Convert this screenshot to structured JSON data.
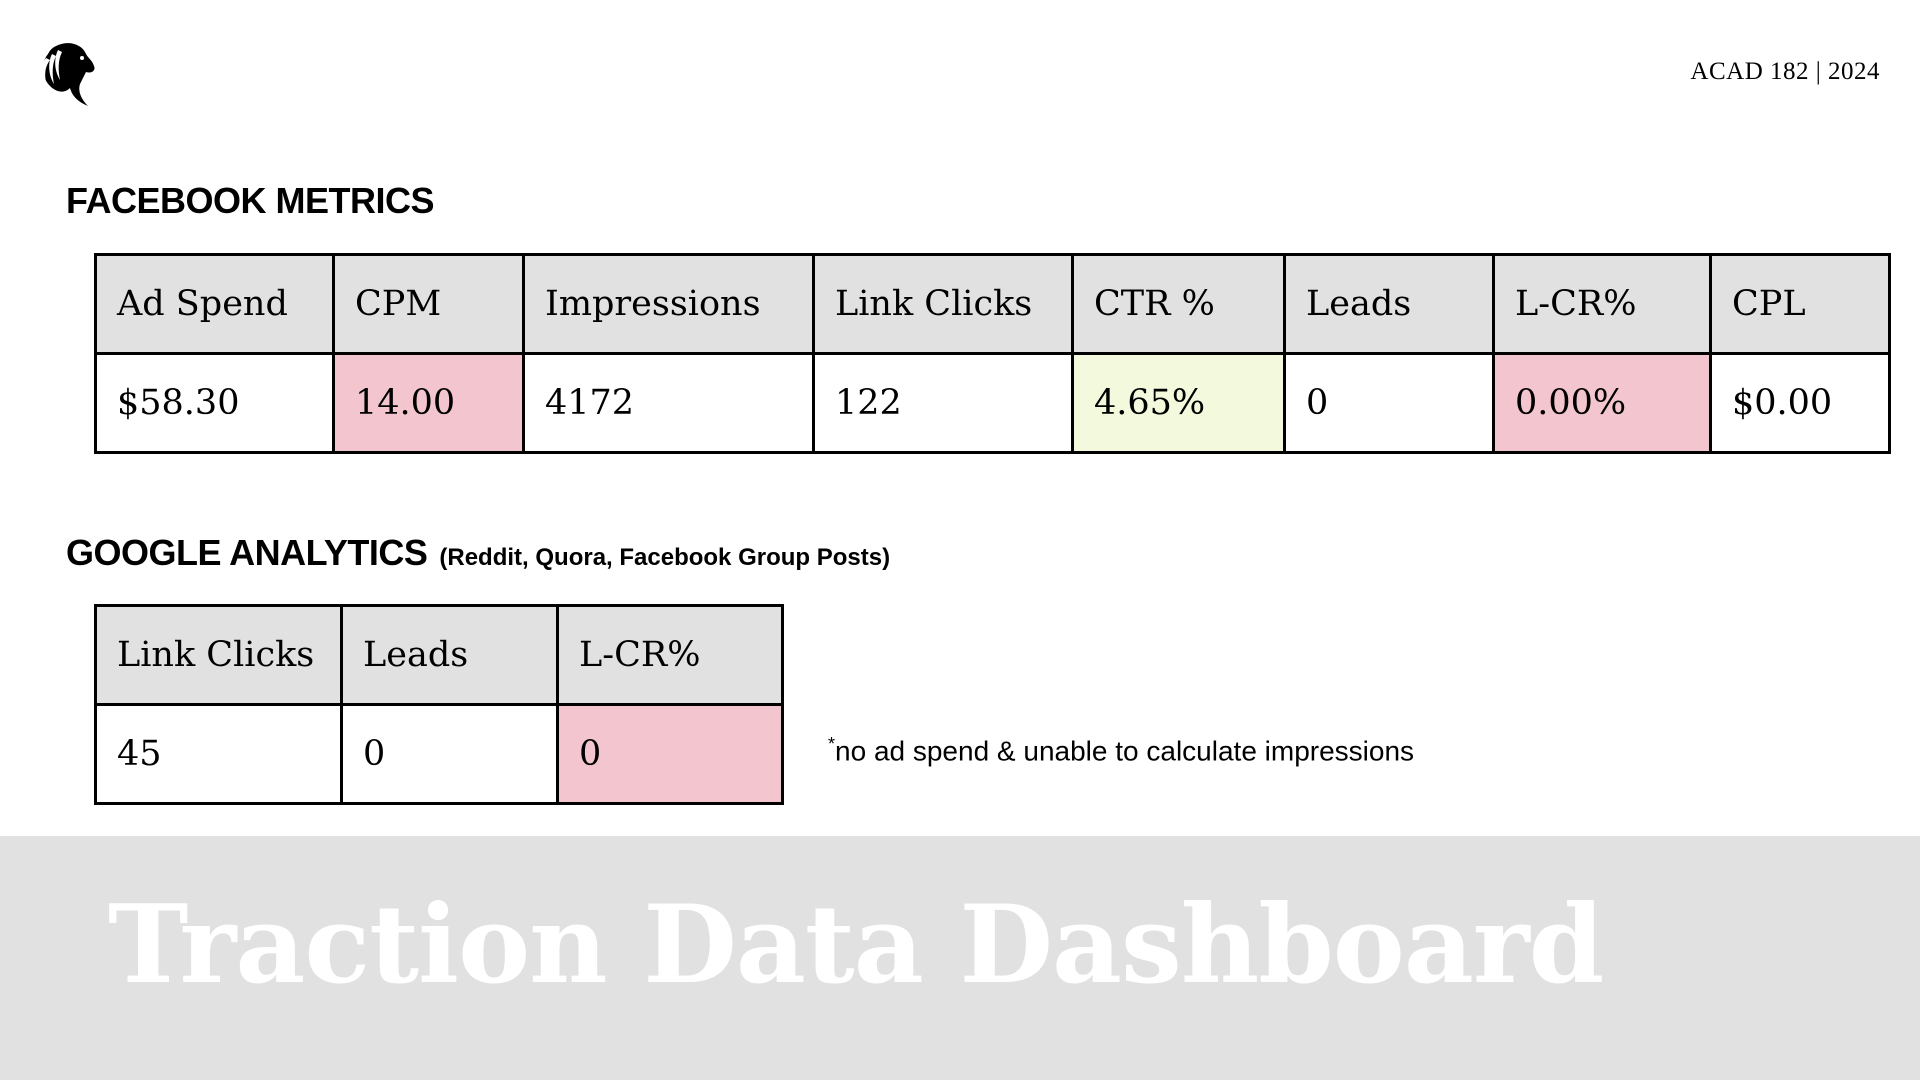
{
  "header": {
    "logo_icon": "horse-head-logo-icon",
    "course_tag": "ACAD 182 | 2024"
  },
  "facebook": {
    "title": "FACEBOOK METRICS",
    "headers": [
      "Ad Spend",
      "CPM",
      "Impressions",
      "Link Clicks",
      "CTR %",
      "Leads",
      "L-CR%",
      "CPL"
    ],
    "values": [
      "$58.30",
      "14.00",
      "4172",
      "122",
      "4.65%",
      "0",
      "0.00%",
      "$0.00"
    ]
  },
  "google": {
    "title": "GOOGLE ANALYTICS",
    "subtitle": "(Reddit, Quora, Facebook Group Posts)",
    "headers": [
      "Link Clicks",
      "Leads",
      "L-CR%"
    ],
    "values": [
      "45",
      "0",
      "0"
    ],
    "footnote_mark": "*",
    "footnote": "no ad spend & unable to calculate impressions"
  },
  "banner": {
    "title": "Traction Data Dashboard"
  },
  "colors": {
    "header_fill": "#e1e1e1",
    "highlight_pink": "#f3c5cf",
    "highlight_green": "#f3f9dc",
    "banner_fill": "#e1e1e1"
  }
}
